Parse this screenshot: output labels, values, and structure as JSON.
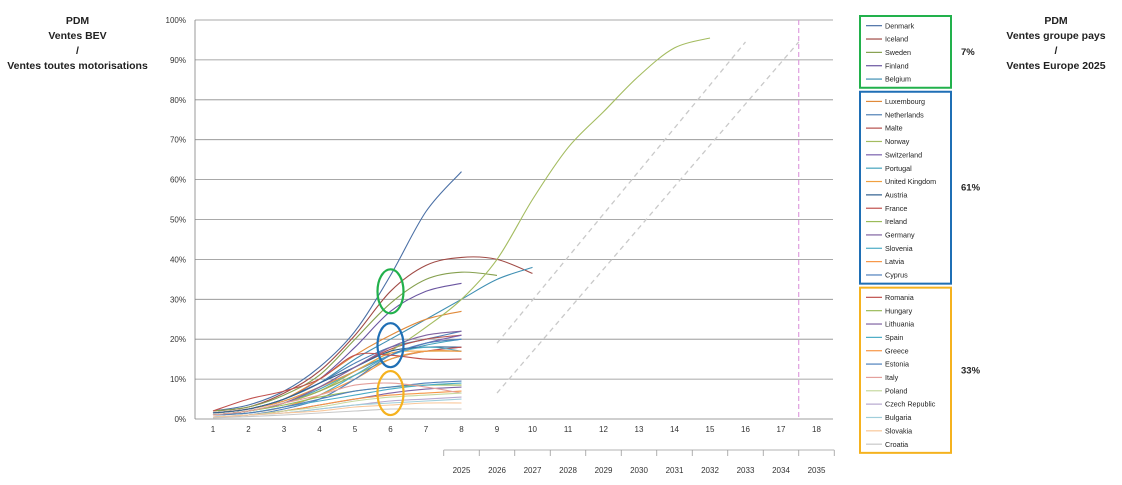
{
  "left_title": [
    "PDM",
    "Ventes BEV",
    "/",
    "Ventes toutes motorisations"
  ],
  "right_title": [
    "PDM",
    "Ventes groupe pays",
    "/",
    "Ventes Europe 2025"
  ],
  "chart_data": {
    "type": "line",
    "y_ticks": [
      "0%",
      "10%",
      "20%",
      "30%",
      "40%",
      "50%",
      "60%",
      "70%",
      "80%",
      "90%",
      "100%"
    ],
    "ylim": [
      0,
      100
    ],
    "x_ticks": [
      1,
      2,
      3,
      4,
      5,
      6,
      7,
      8,
      9,
      10,
      11,
      12,
      13,
      14,
      15,
      16,
      17,
      18
    ],
    "xlim": [
      1,
      18
    ],
    "year_labels": [
      "2025",
      "2026",
      "2027",
      "2028",
      "2029",
      "2030",
      "2031",
      "2032",
      "2033",
      "2034",
      "2035"
    ],
    "grid": true,
    "legend_position": "right",
    "groups": [
      {
        "share": "7%",
        "color": "#22b14c",
        "members": [
          "Denmark",
          "Iceland",
          "Sweden",
          "Finland",
          "Belgium"
        ]
      },
      {
        "share": "61%",
        "color": "#1f6fb5",
        "members": [
          "Luxembourg",
          "Netherlands",
          "Malte",
          "Norway",
          "Switzerland",
          "Portugal",
          "United Kingdom",
          "Austria",
          "France",
          "Ireland",
          "Germany",
          "Slovenia",
          "Latvia",
          "Cyprus"
        ]
      },
      {
        "share": "33%",
        "color": "#f5b21f",
        "members": [
          "Romania",
          "Hungary",
          "Lithuania",
          "Spain",
          "Greece",
          "Estonia",
          "Italy",
          "Poland",
          "Czech Republic",
          "Bulgaria",
          "Slovakia",
          "Croatia"
        ]
      }
    ],
    "series": [
      {
        "name": "Denmark",
        "color": "#4a6fa5",
        "x": [
          1,
          2,
          3,
          4,
          5,
          6,
          7,
          8
        ],
        "y": [
          2,
          3.5,
          7,
          13,
          22,
          36,
          52,
          62
        ]
      },
      {
        "name": "Iceland",
        "color": "#a04a45",
        "x": [
          1,
          2,
          3,
          4,
          5,
          6,
          7,
          8,
          9,
          10
        ],
        "y": [
          2,
          3,
          6.5,
          12,
          21,
          32,
          38.5,
          40.5,
          40,
          36.5
        ]
      },
      {
        "name": "Sweden",
        "color": "#86a04f",
        "x": [
          1,
          2,
          3,
          4,
          5,
          6,
          7,
          8,
          9
        ],
        "y": [
          2,
          3,
          6,
          11,
          20,
          29,
          35,
          36.8,
          36
        ]
      },
      {
        "name": "Finland",
        "color": "#6a55a0",
        "x": [
          1,
          2,
          3,
          4,
          5,
          6,
          7,
          8
        ],
        "y": [
          1.5,
          2.5,
          5,
          10,
          18,
          27,
          32,
          34
        ]
      },
      {
        "name": "Belgium",
        "color": "#3f8fb3",
        "x": [
          1,
          2,
          3,
          4,
          5,
          6,
          7,
          8,
          9,
          10
        ],
        "y": [
          1.5,
          2.5,
          5,
          9,
          15,
          20,
          25,
          30,
          35,
          38
        ]
      },
      {
        "name": "Luxembourg",
        "color": "#e08a3a",
        "x": [
          1,
          2,
          3,
          4,
          5,
          6,
          7,
          8
        ],
        "y": [
          1.5,
          2.5,
          5,
          10,
          16,
          21,
          25,
          27
        ]
      },
      {
        "name": "Netherlands",
        "color": "#4f7fb5",
        "x": [
          1,
          2,
          3,
          4,
          5,
          6,
          7,
          8
        ],
        "y": [
          1.5,
          2.5,
          5,
          9,
          14,
          18,
          20,
          22
        ]
      },
      {
        "name": "Malte",
        "color": "#b5504c",
        "x": [
          1,
          2,
          3,
          4,
          5,
          6,
          7,
          8
        ],
        "y": [
          1,
          2,
          4,
          8,
          13,
          17.5,
          20,
          21
        ]
      },
      {
        "name": "Norway",
        "color": "#a4bc60",
        "x": [
          1,
          2,
          3,
          4,
          5,
          6,
          7,
          8,
          9,
          10,
          11,
          12,
          13,
          14,
          15
        ],
        "y": [
          1,
          2,
          4,
          7,
          12,
          17,
          23,
          30,
          40,
          55,
          68,
          77,
          86,
          93,
          95.5
        ]
      },
      {
        "name": "Switzerland",
        "color": "#7a60ad",
        "x": [
          1,
          2,
          3,
          4,
          5,
          6,
          7,
          8
        ],
        "y": [
          1.5,
          2.5,
          4.5,
          8,
          12,
          16,
          19,
          21
        ]
      },
      {
        "name": "Portugal",
        "color": "#44a3bd",
        "x": [
          1,
          2,
          3,
          4,
          5,
          6,
          7,
          8
        ],
        "y": [
          1,
          2,
          4,
          7.5,
          12,
          16,
          18.5,
          20
        ]
      },
      {
        "name": "United Kingdom",
        "color": "#f0a040",
        "x": [
          1,
          2,
          3,
          4,
          5,
          6,
          7,
          8
        ],
        "y": [
          1.5,
          2.5,
          4.5,
          8,
          12,
          16.5,
          17,
          17
        ]
      },
      {
        "name": "Austria",
        "color": "#2f5f8f",
        "x": [
          1,
          2,
          3,
          4,
          5,
          6,
          7,
          8
        ],
        "y": [
          1.5,
          2.5,
          5,
          9,
          13,
          17,
          18,
          18
        ]
      },
      {
        "name": "France",
        "color": "#c0504d",
        "x": [
          1,
          2,
          3,
          4,
          5,
          6,
          7,
          8
        ],
        "y": [
          1,
          2,
          4,
          7,
          11,
          15,
          17,
          18
        ]
      },
      {
        "name": "Ireland",
        "color": "#9bbb59",
        "x": [
          1,
          2,
          3,
          4,
          5,
          6,
          7,
          8
        ],
        "y": [
          1,
          2,
          4,
          7,
          11,
          15,
          17,
          17
        ]
      },
      {
        "name": "Germany",
        "color": "#8064a2",
        "x": [
          1,
          2,
          3,
          4,
          5,
          6,
          7,
          8
        ],
        "y": [
          1,
          2,
          4,
          8,
          13,
          18,
          21,
          22
        ]
      },
      {
        "name": "Slovenia",
        "color": "#4bacc6",
        "x": [
          1,
          2,
          3,
          4,
          5,
          6,
          7,
          8
        ],
        "y": [
          1,
          1.5,
          3,
          6,
          11,
          16,
          18,
          17
        ]
      },
      {
        "name": "Latvia",
        "color": "#f79646",
        "x": [
          1,
          2,
          3,
          4,
          5,
          6,
          7,
          8
        ],
        "y": [
          1,
          1.5,
          3,
          6,
          10,
          15,
          17,
          17
        ]
      },
      {
        "name": "Cyprus",
        "color": "#4f81bd",
        "x": [
          1,
          2,
          3,
          4,
          5,
          6,
          7,
          8
        ],
        "y": [
          0.5,
          1,
          2.5,
          5,
          10,
          16,
          19,
          20
        ]
      },
      {
        "name": "Romania",
        "color": "#c0504d",
        "x": [
          1,
          2,
          3,
          4,
          5,
          6,
          7,
          8
        ],
        "y": [
          2,
          5,
          7,
          10,
          16,
          16,
          15,
          15
        ]
      },
      {
        "name": "Hungary",
        "color": "#9bbb59",
        "x": [
          1,
          2,
          3,
          4,
          5,
          6,
          7,
          8
        ],
        "y": [
          1,
          2,
          3.5,
          5.5,
          7,
          8,
          8.5,
          8.5
        ]
      },
      {
        "name": "Lithuania",
        "color": "#8064a2",
        "x": [
          1,
          2,
          3,
          4,
          5,
          6,
          7,
          8
        ],
        "y": [
          0.5,
          1,
          2,
          3.5,
          5,
          6.5,
          7.5,
          8
        ]
      },
      {
        "name": "Spain",
        "color": "#4bacc6",
        "x": [
          1,
          2,
          3,
          4,
          5,
          6,
          7,
          8
        ],
        "y": [
          1,
          1.5,
          3,
          4.5,
          6,
          7.5,
          8.5,
          9
        ]
      },
      {
        "name": "Greece",
        "color": "#f79646",
        "x": [
          1,
          2,
          3,
          4,
          5,
          6,
          7,
          8
        ],
        "y": [
          0.5,
          1,
          2,
          3.5,
          5,
          6,
          6.5,
          7
        ]
      },
      {
        "name": "Estonia",
        "color": "#4f81bd",
        "x": [
          1,
          2,
          3,
          4,
          5,
          6,
          7,
          8
        ],
        "y": [
          1,
          1.5,
          3,
          5,
          7,
          8,
          9,
          9.5
        ]
      },
      {
        "name": "Italy",
        "color": "#e4a09c",
        "x": [
          1,
          2,
          3,
          4,
          5,
          6,
          7,
          8
        ],
        "y": [
          1,
          2,
          4,
          6,
          8.5,
          9,
          8,
          6.5
        ]
      },
      {
        "name": "Poland",
        "color": "#c6d9a0",
        "x": [
          1,
          2,
          3,
          4,
          5,
          6,
          7,
          8
        ],
        "y": [
          0.5,
          1,
          2,
          3,
          4.5,
          5.5,
          6,
          6.5
        ]
      },
      {
        "name": "Czech Republic",
        "color": "#b7a9cf",
        "x": [
          1,
          2,
          3,
          4,
          5,
          6,
          7,
          8
        ],
        "y": [
          0.5,
          1,
          1.5,
          2.5,
          3.5,
          4.5,
          5,
          5.5
        ]
      },
      {
        "name": "Bulgaria",
        "color": "#a0cedb",
        "x": [
          1,
          2,
          3,
          4,
          5,
          6,
          7,
          8
        ],
        "y": [
          0.5,
          1,
          1.5,
          2.5,
          3.5,
          4,
          4.5,
          5
        ]
      },
      {
        "name": "Slovakia",
        "color": "#f9c79a",
        "x": [
          1,
          2,
          3,
          4,
          5,
          6,
          7,
          8
        ],
        "y": [
          0.5,
          1,
          1.5,
          2,
          3,
          3.5,
          4,
          4
        ]
      },
      {
        "name": "Croatia",
        "color": "#c8c8c8",
        "x": [
          1,
          2,
          3,
          4,
          5,
          6,
          7,
          8
        ],
        "y": [
          0.3,
          0.6,
          1,
          1.5,
          2,
          2.5,
          2.5,
          2.5
        ]
      }
    ],
    "trend_lines": [
      {
        "x": [
          9,
          16
        ],
        "y": [
          19,
          94.5
        ]
      },
      {
        "x": [
          9,
          17.5
        ],
        "y": [
          6.5,
          94.5
        ]
      }
    ],
    "target_marker_x": 17.5,
    "group_ellipses": [
      {
        "group": 0,
        "x": 6,
        "y": 32
      },
      {
        "group": 1,
        "x": 6,
        "y": 18.5
      },
      {
        "group": 2,
        "x": 6,
        "y": 6.5
      }
    ]
  }
}
